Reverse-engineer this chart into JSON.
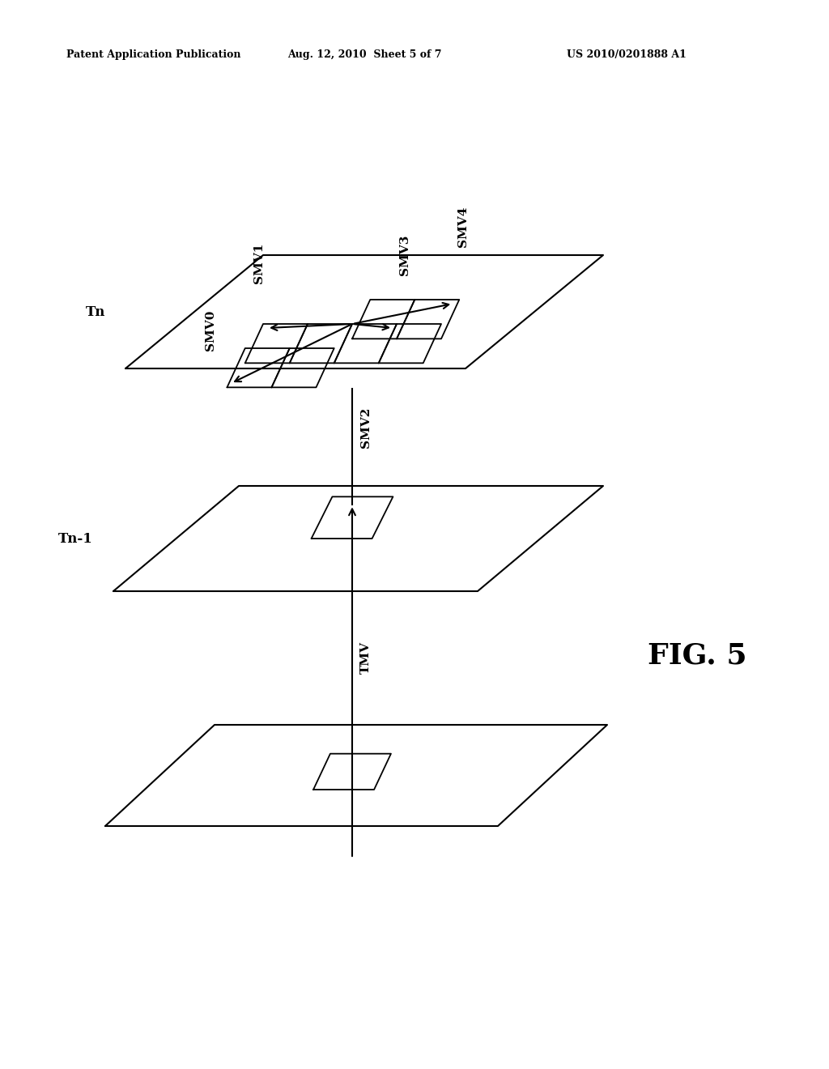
{
  "bg_color": "#ffffff",
  "line_color": "#000000",
  "header_left": "Patent Application Publication",
  "header_mid": "Aug. 12, 2010  Sheet 5 of 7",
  "header_right": "US 2010/0201888 A1",
  "fig_label": "FIG. 5",
  "label_Tn": "Tn",
  "label_Tn1": "Tn-1",
  "tmv_label": "TMV",
  "smv_labels": [
    "SMV0",
    "SMV1",
    "SMV2",
    "SMV3",
    "SMV4"
  ],
  "header_fontsize": 9,
  "label_fontsize": 12,
  "smv_fontsize": 11,
  "fig_fontsize": 26,
  "tmv_fontsize": 11,
  "plane_lw": 1.5,
  "arrow_lw": 1.5
}
